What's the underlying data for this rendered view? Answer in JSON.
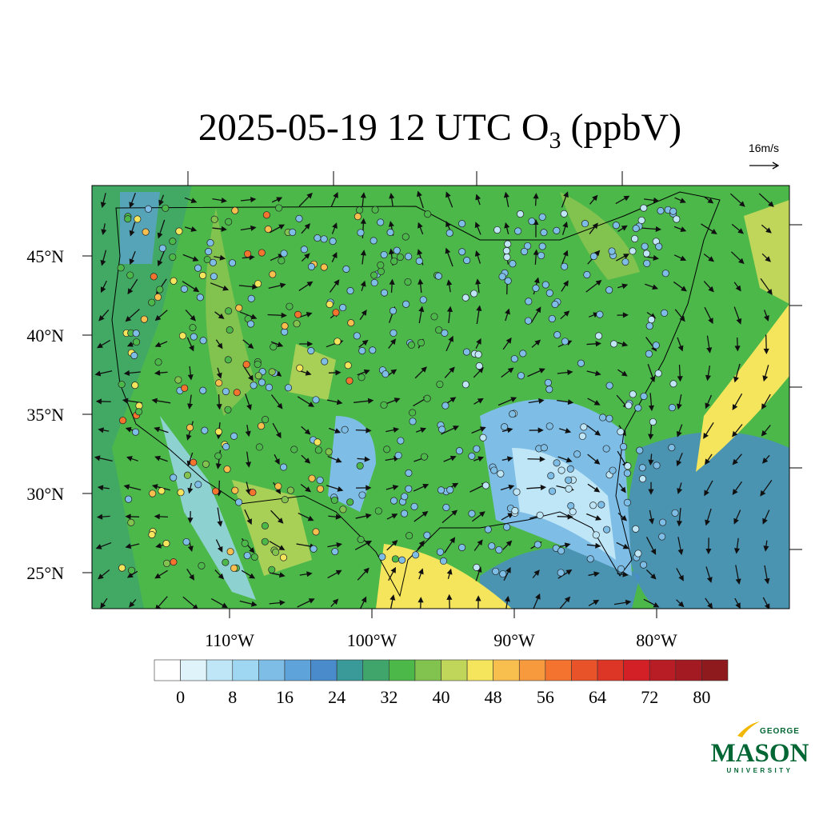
{
  "title": {
    "prefix": "2025-05-19 12 UTC O",
    "subscript": "3",
    "suffix": "(ppbV)"
  },
  "wind_scale": "16m/s",
  "lat_labels": [
    "45°N",
    "40°N",
    "35°N",
    "30°N",
    "25°N"
  ],
  "lon_labels": [
    "110°W",
    "100°W",
    "90°W",
    "80°W"
  ],
  "colorbar": {
    "colors": [
      "#ffffff",
      "#dff3fb",
      "#bfe6f7",
      "#9fd7f3",
      "#7dbde6",
      "#5fa3db",
      "#4a8bcc",
      "#3a9a9a",
      "#3fa56a",
      "#4cb84a",
      "#82c24e",
      "#bfd65a",
      "#f5e55c",
      "#f9bf4e",
      "#f79a3e",
      "#f4732e",
      "#e9532a",
      "#dd3627",
      "#d31f26",
      "#b81c24",
      "#a31a22",
      "#8e1a1d"
    ],
    "labels": [
      "0",
      "8",
      "16",
      "24",
      "32",
      "40",
      "48",
      "56",
      "64",
      "72",
      "80"
    ]
  },
  "logo": {
    "top": "GEORGE",
    "main": "MASON",
    "bottom": "UNIVERSITY"
  }
}
